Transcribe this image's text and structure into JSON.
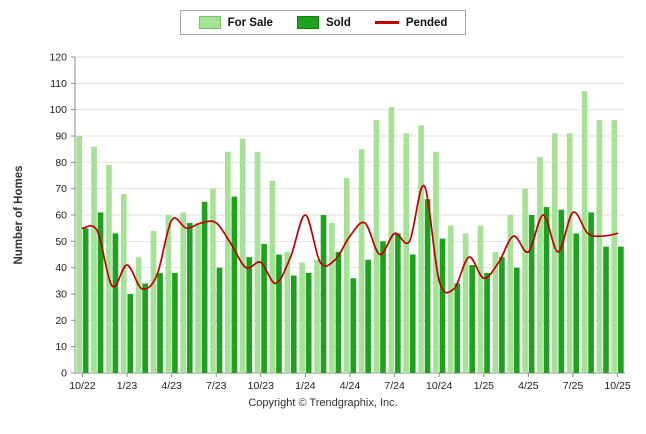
{
  "legend": {
    "items": [
      {
        "label": "For Sale",
        "color": "#a5e295",
        "type": "box"
      },
      {
        "label": "Sold",
        "color": "#1ca21c",
        "type": "box"
      },
      {
        "label": "Pended",
        "color": "#c00000",
        "type": "line"
      }
    ]
  },
  "chart_data": {
    "type": "bar",
    "title": "",
    "xlabel": "",
    "ylabel": "Number of Homes",
    "ylim": [
      0,
      120
    ],
    "ytick_step": 10,
    "grid": "horizontal",
    "legend_position": "top-center",
    "x": [
      "10/22",
      "11/22",
      "12/22",
      "1/23",
      "2/23",
      "3/23",
      "4/23",
      "5/23",
      "6/23",
      "7/23",
      "8/23",
      "9/23",
      "10/23",
      "11/23",
      "12/23",
      "1/24",
      "2/24",
      "3/24",
      "4/24",
      "5/24",
      "6/24",
      "7/24",
      "8/24",
      "9/24",
      "10/24",
      "11/24",
      "12/24",
      "1/25",
      "2/25",
      "3/25",
      "4/25",
      "5/25",
      "6/25",
      "7/25",
      "8/25",
      "9/25",
      "10/25"
    ],
    "xtick_every": 3,
    "xtick_labels": [
      "10/22",
      "1/23",
      "4/23",
      "7/23",
      "10/23",
      "1/24",
      "4/24",
      "7/24",
      "10/24",
      "1/25",
      "4/25",
      "7/25",
      "10/25"
    ],
    "series": [
      {
        "name": "For Sale",
        "type": "bar",
        "color": "#a5e295",
        "values": [
          90,
          86,
          79,
          68,
          44,
          54,
          60,
          61,
          57,
          70,
          84,
          89,
          84,
          73,
          46,
          42,
          43,
          57,
          74,
          85,
          96,
          101,
          91,
          94,
          84,
          56,
          53,
          56,
          46,
          60,
          70,
          82,
          91,
          91,
          107,
          96,
          96
        ]
      },
      {
        "name": "Sold",
        "type": "bar",
        "color": "#1ca21c",
        "values": [
          55,
          61,
          53,
          30,
          34,
          38,
          38,
          57,
          65,
          40,
          67,
          44,
          49,
          45,
          37,
          38,
          60,
          46,
          36,
          43,
          50,
          53,
          45,
          66,
          51,
          34,
          41,
          38,
          44,
          40,
          60,
          63,
          62,
          53,
          61,
          48,
          48
        ]
      },
      {
        "name": "Pended",
        "type": "line",
        "color": "#c00000",
        "values": [
          55,
          54,
          33,
          41,
          32,
          37,
          58,
          55,
          57,
          57,
          49,
          40,
          42,
          34,
          44,
          60,
          42,
          43,
          52,
          57,
          45,
          53,
          50,
          71,
          35,
          32,
          44,
          36,
          42,
          52,
          46,
          60,
          46,
          61,
          53,
          52,
          53
        ]
      }
    ]
  },
  "footer": {
    "copyright": "Copyright © Trendgraphix, Inc."
  }
}
